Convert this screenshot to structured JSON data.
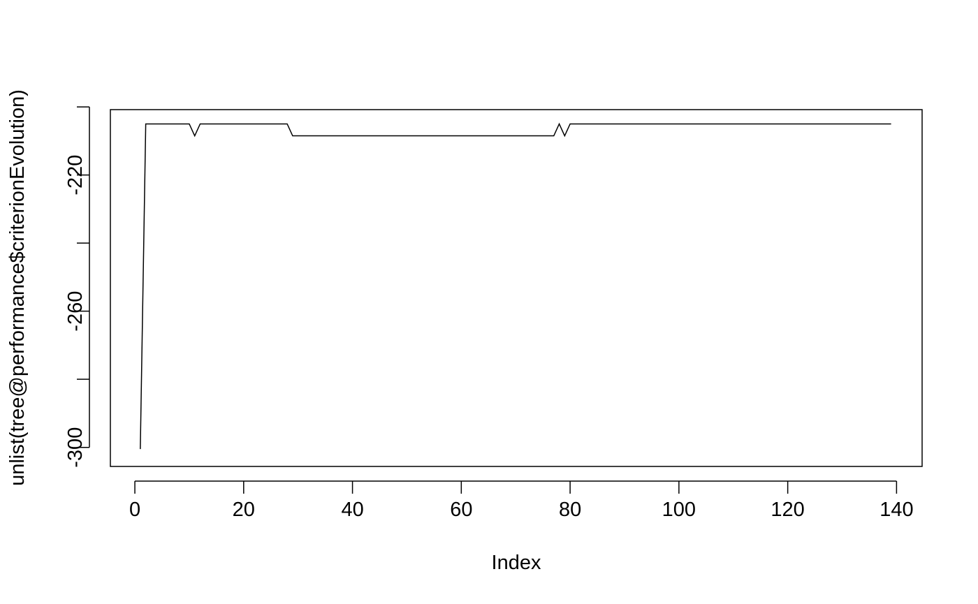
{
  "chart_data": {
    "type": "line",
    "title": "",
    "xlabel": "Index",
    "ylabel": "unlist(tree@performance$criterionEvolution)",
    "xlim": [
      -4.5,
      144.7
    ],
    "ylim": [
      -305.6,
      -200.8
    ],
    "grid": false,
    "legend": "none",
    "x_ticks": [
      0,
      20,
      40,
      60,
      80,
      100,
      120,
      140
    ],
    "x_tick_labels": [
      "0",
      "20",
      "40",
      "60",
      "80",
      "100",
      "120",
      "140"
    ],
    "y_ticks": [
      -300,
      -280,
      -260,
      -240,
      -220,
      -200
    ],
    "y_tick_labels": [
      "-300",
      "",
      "-260",
      "",
      "-220",
      ""
    ],
    "line_color": "#000000",
    "segments": [
      {
        "from": 1,
        "to": 1,
        "value": -300.5
      },
      {
        "from": 2,
        "to": 10,
        "value": -205
      },
      {
        "from": 11,
        "to": 11,
        "value": -208.5
      },
      {
        "from": 12,
        "to": 28,
        "value": -205
      },
      {
        "from": 29,
        "to": 77,
        "value": -208.5
      },
      {
        "from": 78,
        "to": 78,
        "value": -205
      },
      {
        "from": 79,
        "to": 79,
        "value": -208.5
      },
      {
        "from": 80,
        "to": 139,
        "value": -205
      }
    ]
  }
}
